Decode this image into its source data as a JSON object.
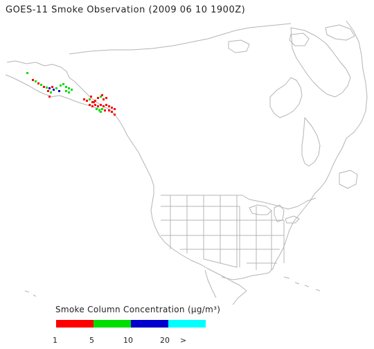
{
  "title": "GOES-11 Smoke Observation (2009 06 10  1900Z)",
  "legend": {
    "title": "Smoke Column Concentration (µg/m³)",
    "segments": [
      {
        "color": "#ff0000"
      },
      {
        "color": "#00dd00"
      },
      {
        "color": "#0000cc"
      },
      {
        "color": "#00ffff"
      }
    ],
    "ticks": [
      "1",
      "5",
      "10",
      "20",
      ">"
    ]
  },
  "colors": {
    "coastline": "#b4b4b4",
    "white_area": "#ffffff",
    "low": "#ff0000",
    "medium": "#00dd00",
    "high": "#0000cc",
    "very_high": "#00ffff"
  }
}
